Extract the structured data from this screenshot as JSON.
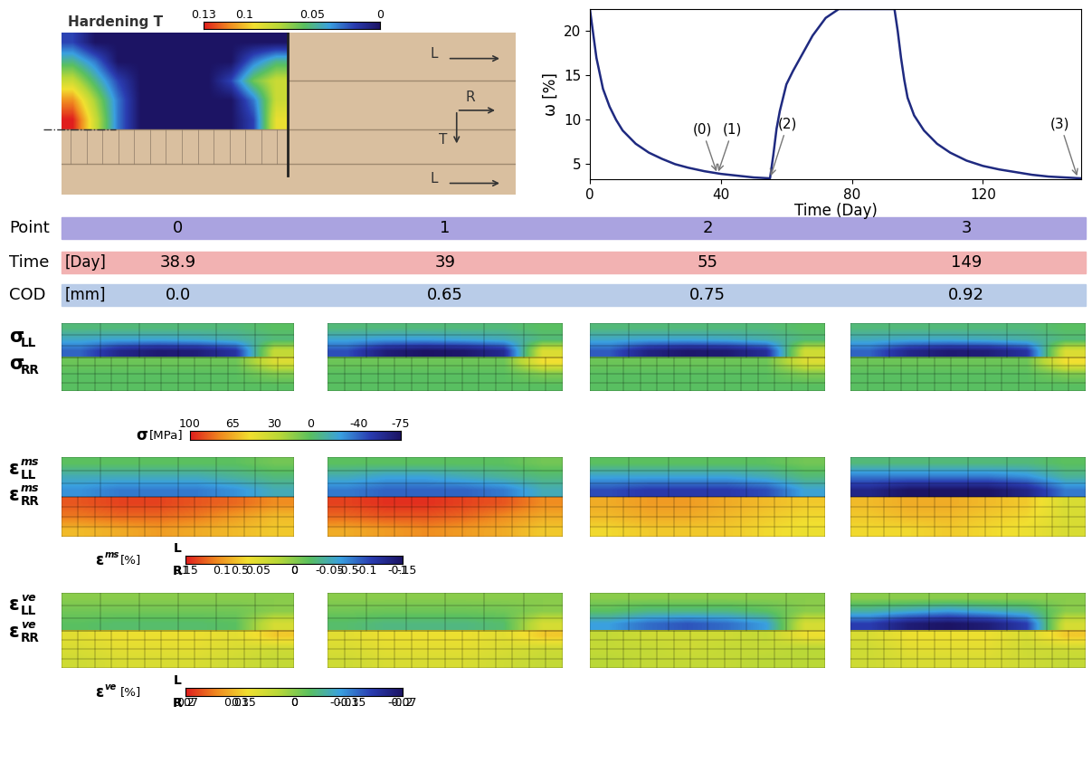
{
  "specimen": {
    "colorbar": {
      "title": "Hardening T",
      "lim": [
        0.13,
        0
      ],
      "ticks": [
        0.13,
        0.1,
        0.05,
        0
      ]
    },
    "field": [
      [
        0.02,
        0,
        0,
        0,
        0,
        0,
        0,
        0,
        0,
        0
      ],
      [
        0.05,
        0.03,
        0,
        0,
        0,
        0,
        0,
        0,
        0.03,
        0.05
      ],
      [
        0.08,
        0.05,
        0.02,
        0,
        0,
        0,
        0,
        0.02,
        0.06,
        0.08
      ],
      [
        0.11,
        0.07,
        0.03,
        0,
        0,
        0,
        0,
        0,
        0.03,
        0.08
      ],
      [
        0.13,
        0.08,
        0.03,
        0,
        0,
        0,
        0,
        0,
        0.02,
        0.09
      ]
    ],
    "direction_labels": [
      "L",
      "R",
      "T",
      "L"
    ]
  },
  "chart_data": {
    "type": "line",
    "color": "#1f2a80",
    "grid": false,
    "xlabel": "Time (Day)",
    "ylabel": "ω [%]",
    "xlim": [
      0,
      150
    ],
    "ylim": [
      3.3,
      22.5
    ],
    "xticks": [
      0,
      40,
      80,
      120
    ],
    "yticks": [
      5,
      10,
      15,
      20
    ],
    "x": [
      0,
      2,
      4,
      6,
      8,
      10,
      14,
      18,
      22,
      26,
      30,
      35,
      40,
      45,
      50,
      55,
      56,
      57,
      58,
      60,
      62,
      65,
      68,
      72,
      76,
      80,
      85,
      90,
      93,
      94,
      95,
      96,
      97,
      99,
      102,
      106,
      110,
      115,
      120,
      125,
      130,
      135,
      140,
      145,
      150
    ],
    "values": [
      22.5,
      17,
      13.5,
      11.5,
      10,
      8.8,
      7.3,
      6.3,
      5.6,
      5.0,
      4.6,
      4.2,
      3.9,
      3.7,
      3.5,
      3.4,
      6,
      9,
      11,
      14,
      15.5,
      17.5,
      19.5,
      21.5,
      22.5,
      22.5,
      22.5,
      22.5,
      22.5,
      20,
      17,
      14.5,
      12.5,
      10.5,
      8.8,
      7.3,
      6.3,
      5.4,
      4.8,
      4.4,
      4.1,
      3.8,
      3.6,
      3.5,
      3.4
    ],
    "annotations": [
      {
        "label": "(0)",
        "x": 38.9,
        "y": 3.9
      },
      {
        "label": "(1)",
        "x": 39,
        "y": 3.9
      },
      {
        "label": "(2)",
        "x": 55,
        "y": 3.4
      },
      {
        "label": "(3)",
        "x": 149,
        "y": 3.4
      }
    ]
  },
  "table": {
    "rows": [
      {
        "label": "Point",
        "color": "#aaa3e0",
        "values": [
          0,
          1,
          2,
          3
        ]
      },
      {
        "label": "Time",
        "unit": "[Day]",
        "color": "#f2b2b2",
        "values": [
          38.9,
          39,
          55,
          149
        ]
      },
      {
        "label": "COD",
        "unit": "[mm]",
        "color": "#b9cce8",
        "values": [
          0.0,
          0.65,
          0.75,
          0.92
        ]
      }
    ]
  },
  "field_rows": [
    {
      "labels": [
        {
          "symbol": "σ",
          "sub": "LL"
        },
        {
          "symbol": "σ",
          "sub": "RR"
        }
      ],
      "colorbar": {
        "label": {
          "symbol": "σ",
          "unit": "[MPa]"
        },
        "scales": [
          {
            "lim": [
              100,
              -75
            ],
            "ticks": [
              100,
              65,
              30,
              0,
              -40,
              -75
            ]
          }
        ]
      },
      "panels": [
        {
          "LL": [
            [
              -5,
              -5,
              -5,
              -5,
              -5,
              0
            ],
            [
              -20,
              -22,
              -22,
              -20,
              -15,
              -5
            ],
            [
              -40,
              -62,
              -70,
              -68,
              -55,
              30
            ]
          ],
          "RR": [
            [
              5,
              5,
              5,
              5,
              5,
              40
            ],
            [
              0,
              0,
              0,
              0,
              0,
              10
            ],
            [
              0,
              0,
              0,
              0,
              0,
              0
            ]
          ]
        },
        {
          "LL": [
            [
              -5,
              -5,
              -5,
              -5,
              -5,
              0
            ],
            [
              -22,
              -25,
              -25,
              -22,
              -18,
              -5
            ],
            [
              -45,
              -68,
              -75,
              -72,
              -60,
              40
            ]
          ],
          "RR": [
            [
              5,
              5,
              5,
              5,
              5,
              50
            ],
            [
              0,
              0,
              0,
              0,
              0,
              10
            ],
            [
              0,
              0,
              0,
              0,
              0,
              0
            ]
          ]
        },
        {
          "LL": [
            [
              -5,
              -5,
              -5,
              -5,
              -5,
              0
            ],
            [
              -20,
              -22,
              -22,
              -20,
              -15,
              -5
            ],
            [
              -42,
              -65,
              -72,
              -70,
              -58,
              35
            ]
          ],
          "RR": [
            [
              5,
              5,
              5,
              5,
              5,
              40
            ],
            [
              0,
              0,
              0,
              0,
              0,
              10
            ],
            [
              0,
              0,
              0,
              0,
              0,
              0
            ]
          ]
        },
        {
          "LL": [
            [
              -5,
              -5,
              -5,
              -5,
              -5,
              0
            ],
            [
              -18,
              -20,
              -20,
              -18,
              -14,
              -5
            ],
            [
              -40,
              -62,
              -70,
              -68,
              -55,
              40
            ]
          ],
          "RR": [
            [
              5,
              5,
              5,
              5,
              5,
              50
            ],
            [
              0,
              0,
              0,
              0,
              0,
              10
            ],
            [
              0,
              0,
              0,
              0,
              0,
              0
            ]
          ]
        }
      ]
    },
    {
      "labels": [
        {
          "symbol": "ε",
          "sup": "ms",
          "sub": "LL"
        },
        {
          "symbol": "ε",
          "sup": "ms",
          "sub": "RR"
        }
      ],
      "colorbar": {
        "label": {
          "symbol": "ε",
          "sup": "ms",
          "unit": "[%]"
        },
        "scales": [
          {
            "name": "L",
            "lim": [
              0.15,
              -0.15
            ],
            "ticks": [
              0.15,
              0.1,
              0.05,
              0,
              -0.05,
              -0.1,
              -0.15
            ]
          },
          {
            "name": "R",
            "lim": [
              1,
              -1
            ],
            "ticks": [
              1,
              0.5,
              0,
              -0.5,
              -1
            ]
          }
        ]
      },
      "panels": [
        {
          "LL": [
            [
              -0.02,
              -0.02,
              -0.02,
              -0.02,
              -0.02,
              -0.01
            ],
            [
              -0.05,
              -0.05,
              -0.05,
              -0.05,
              -0.04,
              -0.03
            ],
            [
              -0.07,
              -0.08,
              -0.08,
              -0.08,
              -0.07,
              -0.05
            ]
          ],
          "RR": [
            [
              0.85,
              0.9,
              0.9,
              0.85,
              0.8,
              0.7
            ],
            [
              0.75,
              0.8,
              0.8,
              0.75,
              0.65,
              0.55
            ],
            [
              0.55,
              0.6,
              0.65,
              0.6,
              0.55,
              0.5
            ]
          ]
        },
        {
          "LL": [
            [
              -0.02,
              -0.02,
              -0.02,
              -0.02,
              -0.02,
              -0.01
            ],
            [
              -0.05,
              -0.06,
              -0.06,
              -0.05,
              -0.04,
              -0.03
            ],
            [
              -0.08,
              -0.09,
              -0.09,
              -0.09,
              -0.08,
              -0.05
            ]
          ],
          "RR": [
            [
              0.9,
              0.95,
              0.95,
              0.9,
              0.85,
              0.7
            ],
            [
              0.8,
              0.85,
              0.85,
              0.8,
              0.7,
              0.6
            ],
            [
              0.6,
              0.65,
              0.7,
              0.65,
              0.6,
              0.5
            ]
          ]
        },
        {
          "LL": [
            [
              -0.02,
              -0.02,
              -0.02,
              -0.02,
              -0.02,
              -0.01
            ],
            [
              -0.06,
              -0.06,
              -0.06,
              -0.06,
              -0.05,
              -0.03
            ],
            [
              -0.1,
              -0.11,
              -0.11,
              -0.11,
              -0.1,
              -0.06
            ]
          ],
          "RR": [
            [
              0.6,
              0.65,
              0.65,
              0.6,
              0.55,
              0.5
            ],
            [
              0.55,
              0.6,
              0.6,
              0.55,
              0.5,
              0.45
            ],
            [
              0.45,
              0.5,
              0.5,
              0.5,
              0.45,
              0.4
            ]
          ]
        },
        {
          "LL": [
            [
              -0.03,
              -0.03,
              -0.03,
              -0.03,
              -0.03,
              -0.02
            ],
            [
              -0.08,
              -0.08,
              -0.08,
              -0.08,
              -0.07,
              -0.04
            ],
            [
              -0.13,
              -0.15,
              -0.15,
              -0.15,
              -0.13,
              -0.08
            ]
          ],
          "RR": [
            [
              0.55,
              0.6,
              0.6,
              0.55,
              0.5,
              0.3
            ],
            [
              0.5,
              0.55,
              0.55,
              0.5,
              0.45,
              0.3
            ],
            [
              0.45,
              0.45,
              0.5,
              0.45,
              0.4,
              0.3
            ]
          ]
        }
      ]
    },
    {
      "labels": [
        {
          "symbol": "ε",
          "sup": "ve",
          "sub": "LL"
        },
        {
          "symbol": "ε",
          "sup": "ve",
          "sub": "RR"
        }
      ],
      "colorbar": {
        "label": {
          "symbol": "ε",
          "sup": "ve",
          "unit": "[%]"
        },
        "scales": [
          {
            "name": "L",
            "lim": [
              0.07,
              -0.07
            ],
            "ticks": [
              0.07,
              0.035,
              0,
              -0.035,
              -0.07
            ]
          },
          {
            "name": "R",
            "lim": [
              0.2,
              -0.2
            ],
            "ticks": [
              0.2,
              0.1,
              0,
              -0.1,
              -0.2
            ]
          }
        ]
      },
      "panels": [
        {
          "LL": [
            [
              0,
              0,
              0,
              0,
              0,
              0
            ],
            [
              -0.005,
              -0.005,
              -0.005,
              -0.005,
              -0.005,
              0
            ],
            [
              -0.01,
              -0.012,
              -0.012,
              -0.012,
              -0.01,
              0.02
            ]
          ],
          "RR": [
            [
              0.07,
              0.08,
              0.08,
              0.08,
              0.07,
              0.1
            ],
            [
              0.06,
              0.07,
              0.07,
              0.07,
              0.06,
              0.05
            ],
            [
              0.05,
              0.06,
              0.06,
              0.06,
              0.05,
              0.04
            ]
          ]
        },
        {
          "LL": [
            [
              0,
              0,
              0,
              0,
              0,
              0
            ],
            [
              -0.005,
              -0.006,
              -0.006,
              -0.006,
              -0.005,
              0
            ],
            [
              -0.012,
              -0.015,
              -0.015,
              -0.015,
              -0.012,
              0.02
            ]
          ],
          "RR": [
            [
              0.07,
              0.08,
              0.08,
              0.08,
              0.07,
              0.1
            ],
            [
              0.06,
              0.07,
              0.07,
              0.07,
              0.06,
              0.05
            ],
            [
              0.05,
              0.06,
              0.06,
              0.06,
              0.05,
              0.04
            ]
          ]
        },
        {
          "LL": [
            [
              0,
              0,
              0,
              0,
              0,
              0
            ],
            [
              -0.01,
              -0.015,
              -0.015,
              -0.015,
              -0.01,
              0
            ],
            [
              -0.03,
              -0.04,
              -0.045,
              -0.04,
              -0.03,
              0.02
            ]
          ],
          "RR": [
            [
              0.04,
              0.05,
              0.05,
              0.05,
              0.04,
              0.08
            ],
            [
              0.04,
              0.04,
              0.05,
              0.04,
              0.04,
              0.03
            ],
            [
              0.03,
              0.04,
              0.04,
              0.04,
              0.03,
              0.03
            ]
          ]
        },
        {
          "LL": [
            [
              0,
              0,
              0,
              0,
              0,
              0
            ],
            [
              -0.02,
              -0.025,
              -0.03,
              -0.025,
              -0.02,
              0
            ],
            [
              -0.05,
              -0.065,
              -0.07,
              -0.065,
              -0.05,
              0.02
            ]
          ],
          "RR": [
            [
              0.06,
              0.08,
              0.08,
              0.08,
              0.06,
              0.1
            ],
            [
              0.05,
              0.07,
              0.07,
              0.07,
              0.05,
              0.05
            ],
            [
              0.05,
              0.06,
              0.06,
              0.06,
              0.05,
              0.04
            ]
          ]
        }
      ]
    }
  ]
}
